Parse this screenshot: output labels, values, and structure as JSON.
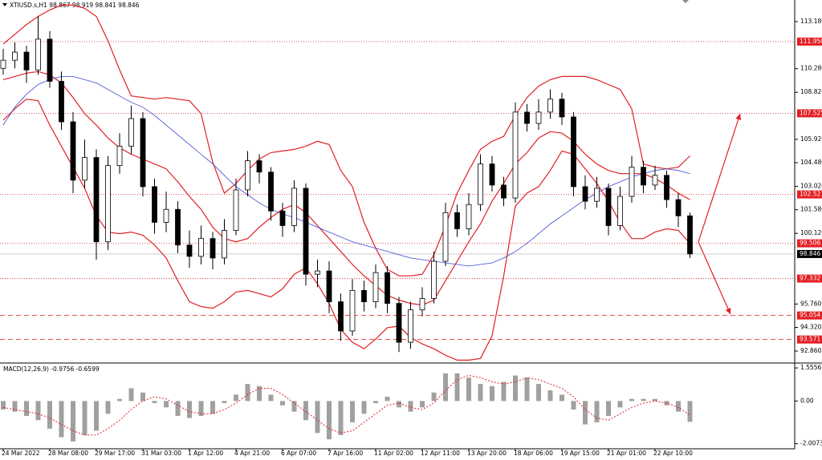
{
  "header": {
    "title": "XTIUSD.s,H1  98.867 98.919 98.841 98.846"
  },
  "chart_data": [
    {
      "type": "candlestick",
      "categories": [
        "24 Mar 2022",
        null,
        null,
        null,
        "28 Mar 08:00",
        null,
        null,
        null,
        "29 Mar 17:00",
        null,
        null,
        null,
        "31 Mar 03:00",
        null,
        null,
        null,
        "1 Apr 12:00",
        null,
        null,
        null,
        "4 Apr 21:00",
        null,
        null,
        null,
        "6 Apr 07:00",
        null,
        null,
        null,
        "7 Apr 16:00",
        null,
        null,
        null,
        "11 Apr 02:00",
        null,
        null,
        null,
        "12 Apr 11:00",
        null,
        null,
        null,
        "13 Apr 20:00",
        null,
        null,
        null,
        "18 Apr 06:00",
        null,
        null,
        null,
        "19 Apr 15:00",
        null,
        null,
        null,
        "21 Apr 01:00",
        null,
        null,
        null,
        "22 Apr 10:00",
        null,
        null,
        null
      ],
      "open": [
        110.3,
        110.8,
        111.3,
        110.2,
        112.1,
        109.5,
        107.0,
        103.4,
        104.8,
        99.6,
        104.3,
        105.5,
        107.2,
        103.0,
        100.8,
        101.6,
        99.4,
        98.7,
        99.8,
        98.6,
        100.3,
        102.8,
        104.6,
        103.9,
        101.5,
        100.6,
        102.9,
        97.6,
        97.8,
        95.9,
        94.1,
        96.6,
        95.9,
        97.7,
        95.8,
        93.4,
        95.4,
        96.1,
        98.4,
        101.4,
        100.4,
        101.9,
        104.4,
        103.1,
        102.3,
        107.6,
        106.9,
        107.6,
        108.4,
        107.3,
        103.0,
        102.1,
        102.9,
        100.6,
        102.4,
        104.2,
        103.1,
        103.7,
        102.2,
        101.2
      ],
      "high": [
        111.5,
        111.9,
        111.7,
        113.5,
        112.6,
        110.1,
        107.6,
        105.9,
        105.3,
        104.9,
        106.3,
        108.0,
        107.6,
        103.5,
        102.7,
        102.1,
        100.3,
        100.6,
        100.2,
        101.0,
        103.5,
        105.2,
        105.0,
        104.2,
        102.0,
        103.4,
        103.2,
        98.5,
        98.4,
        96.4,
        97.3,
        97.2,
        98.2,
        98.1,
        96.2,
        95.9,
        96.8,
        99.0,
        102.0,
        101.9,
        102.6,
        105.0,
        104.9,
        103.6,
        108.2,
        108.1,
        108.4,
        109.0,
        108.8,
        107.6,
        103.7,
        103.6,
        103.2,
        103.0,
        104.9,
        104.6,
        104.3,
        104.0,
        102.6,
        101.4
      ],
      "low": [
        109.9,
        110.3,
        109.4,
        109.9,
        109.1,
        106.5,
        102.6,
        102.9,
        98.5,
        99.1,
        103.8,
        105.0,
        102.4,
        100.1,
        100.2,
        98.9,
        98.0,
        98.2,
        97.9,
        98.2,
        100.0,
        102.4,
        103.2,
        100.9,
        99.9,
        100.2,
        96.9,
        96.8,
        95.2,
        93.5,
        93.8,
        95.3,
        95.5,
        95.2,
        92.8,
        93.0,
        95.0,
        95.8,
        98.1,
        99.9,
        100.0,
        101.5,
        102.7,
        101.8,
        102.0,
        106.4,
        106.5,
        107.2,
        106.8,
        102.4,
        101.6,
        101.7,
        100.0,
        100.3,
        102.0,
        102.6,
        102.8,
        101.7,
        100.5,
        98.6
      ],
      "close": [
        110.8,
        111.3,
        110.2,
        112.1,
        109.5,
        107.0,
        103.4,
        104.8,
        99.6,
        104.3,
        105.5,
        107.2,
        103.0,
        100.8,
        101.6,
        99.4,
        98.7,
        99.8,
        98.6,
        100.3,
        102.8,
        104.6,
        103.9,
        101.5,
        100.6,
        102.9,
        97.6,
        97.8,
        95.9,
        94.1,
        96.6,
        95.9,
        97.7,
        95.8,
        93.4,
        95.4,
        96.1,
        98.4,
        101.4,
        100.4,
        101.9,
        104.4,
        103.1,
        102.3,
        107.6,
        106.9,
        107.6,
        108.4,
        107.3,
        103.0,
        102.1,
        102.9,
        100.6,
        102.4,
        104.2,
        103.1,
        103.7,
        102.2,
        101.2,
        98.85
      ],
      "color": "#000000",
      "series": [
        {
          "color": "#e31e24",
          "values": [
            111.8,
            112.4,
            113.0,
            113.5,
            113.9,
            114.2,
            114.2,
            114.0,
            113.5,
            112.0,
            110.2,
            108.6,
            108.5,
            108.4,
            108.5,
            108.4,
            108.3,
            107.5,
            104.5,
            102.6,
            103.2,
            104.0,
            104.7,
            105.1,
            105.2,
            105.3,
            105.5,
            105.8,
            105.6,
            104.0,
            103.0,
            100.8,
            99.2,
            97.9,
            97.5,
            97.5,
            97.6,
            98.8,
            100.6,
            102.6,
            104.0,
            105.3,
            105.8,
            106.1,
            107.4,
            108.5,
            109.2,
            109.6,
            109.8,
            109.8,
            109.8,
            109.6,
            109.3,
            109.0,
            107.8,
            104.4,
            104.2,
            104.1,
            104.2,
            104.9
          ]
        },
        {
          "color": "#e31e24",
          "values": [
            109.6,
            109.8,
            110.0,
            110.1,
            109.9,
            109.4,
            108.5,
            107.5,
            106.8,
            106.0,
            105.4,
            105.0,
            104.7,
            104.4,
            104.1,
            103.3,
            102.4,
            101.6,
            100.5,
            99.8,
            99.6,
            99.8,
            100.5,
            101.1,
            101.6,
            101.9,
            101.4,
            100.6,
            99.8,
            99.0,
            98.2,
            97.5,
            96.9,
            96.3,
            96.0,
            95.8,
            95.7,
            96.0,
            97.2,
            98.4,
            99.6,
            100.7,
            102.1,
            103.2,
            104.4,
            105.1,
            106.0,
            106.4,
            106.3,
            105.8,
            105.0,
            104.4,
            104.0,
            103.8,
            103.8,
            103.8,
            103.5,
            103.1,
            102.6,
            102.2
          ]
        },
        {
          "color": "#e31e24",
          "values": [
            107.1,
            107.8,
            108.4,
            108.3,
            106.8,
            105.5,
            104.2,
            102.9,
            101.2,
            100.2,
            100.1,
            100.2,
            100.0,
            99.4,
            98.6,
            97.2,
            95.9,
            95.6,
            95.5,
            95.9,
            96.5,
            96.6,
            96.4,
            96.2,
            96.7,
            97.6,
            98.0,
            97.0,
            95.8,
            94.2,
            93.4,
            93.0,
            93.6,
            94.3,
            94.4,
            93.7,
            93.3,
            93.0,
            92.6,
            92.3,
            92.3,
            92.4,
            93.8,
            97.5,
            101.8,
            102.6,
            103.0,
            104.0,
            105.2,
            105.0,
            104.1,
            103.2,
            102.1,
            100.8,
            99.8,
            99.8,
            100.2,
            100.4,
            100.3,
            99.5
          ]
        },
        {
          "color": "#3b4bd8",
          "values": [
            106.8,
            107.9,
            108.7,
            109.3,
            109.6,
            109.8,
            109.8,
            109.6,
            109.4,
            109.0,
            108.6,
            108.2,
            107.9,
            107.4,
            106.8,
            106.2,
            105.6,
            105.0,
            104.4,
            103.7,
            103.0,
            102.5,
            102.0,
            101.6,
            101.3,
            101.1,
            100.8,
            100.5,
            100.2,
            99.9,
            99.6,
            99.4,
            99.2,
            99.0,
            98.8,
            98.6,
            98.5,
            98.4,
            98.3,
            98.2,
            98.1,
            98.2,
            98.3,
            98.6,
            99.0,
            99.5,
            100.1,
            100.7,
            101.2,
            101.7,
            102.2,
            102.6,
            103.0,
            103.3,
            103.6,
            103.8,
            104.0,
            104.1,
            104.0,
            103.8
          ]
        }
      ],
      "ylim": [
        92.17,
        114.515
      ],
      "yticks": [
        {
          "value": 113.18,
          "label": "113.180"
        },
        {
          "value": 110.28,
          "label": "110.280"
        },
        {
          "value": 108.82,
          "label": "108.820"
        },
        {
          "value": 105.92,
          "label": "105.920"
        },
        {
          "value": 104.48,
          "label": "104.480"
        },
        {
          "value": 103.02,
          "label": "103.020"
        },
        {
          "value": 101.58,
          "label": "101.580"
        },
        {
          "value": 100.12,
          "label": "100.120"
        },
        {
          "value": 95.76,
          "label": "95.760"
        },
        {
          "value": 94.32,
          "label": "94.320"
        },
        {
          "value": 92.86,
          "label": "92.860"
        }
      ],
      "levels": [
        {
          "value": 111.95,
          "label": "111.950",
          "style": "dotted"
        },
        {
          "value": 107.525,
          "label": "107.525",
          "style": "dotted"
        },
        {
          "value": 102.521,
          "label": "102.521",
          "style": "dotted"
        },
        {
          "value": 99.506,
          "label": "99.506",
          "style": "dotted"
        },
        {
          "value": 97.332,
          "label": "97.332",
          "style": "dotted"
        },
        {
          "value": 95.054,
          "label": "95.054",
          "style": "dashed"
        },
        {
          "value": 93.571,
          "label": "93.571",
          "style": "dashed"
        }
      ],
      "level_color": "#e31e24",
      "last_price": {
        "value": 98.846,
        "label": "98.846"
      }
    },
    {
      "type": "macd",
      "title": "MACD(12,26,9) -0.9756 -0.6599",
      "values": [
        -0.4,
        -0.5,
        -0.7,
        -0.9,
        -1.3,
        -1.7,
        -1.9,
        -1.6,
        -1.4,
        -0.6,
        0.1,
        0.6,
        0.4,
        -0.1,
        -0.3,
        -0.7,
        -0.8,
        -0.7,
        -0.6,
        -0.1,
        0.3,
        0.8,
        0.7,
        0.3,
        -0.2,
        -0.5,
        -0.9,
        -1.5,
        -1.8,
        -1.6,
        -1.0,
        -0.6,
        -0.1,
        0.2,
        -0.3,
        -0.5,
        -0.3,
        0.4,
        1.3,
        1.3,
        1.1,
        0.8,
        0.7,
        0.9,
        1.2,
        1.1,
        0.8,
        0.5,
        0.3,
        -0.4,
        -1.1,
        -1.0,
        -0.7,
        -0.3,
        0.1,
        0.1,
        0.1,
        -0.2,
        -0.5,
        -0.98
      ],
      "color": "#a0a0a0",
      "signal": {
        "color": "#e31e24",
        "values": [
          -0.3,
          -0.4,
          -0.5,
          -0.6,
          -0.8,
          -1.1,
          -1.4,
          -1.6,
          -1.6,
          -1.3,
          -0.9,
          -0.4,
          0.0,
          0.2,
          0.1,
          -0.2,
          -0.5,
          -0.6,
          -0.6,
          -0.4,
          -0.1,
          0.3,
          0.6,
          0.6,
          0.3,
          -0.1,
          -0.5,
          -0.9,
          -1.3,
          -1.5,
          -1.4,
          -1.0,
          -0.6,
          -0.2,
          -0.1,
          -0.3,
          -0.4,
          -0.1,
          0.5,
          1.0,
          1.2,
          1.1,
          0.9,
          0.8,
          0.9,
          1.1,
          1.0,
          0.8,
          0.6,
          0.2,
          -0.4,
          -0.8,
          -0.9,
          -0.6,
          -0.3,
          -0.1,
          0.0,
          -0.1,
          -0.3,
          -0.66
        ]
      },
      "ylim": [
        -2.17,
        1.71
      ],
      "yticks": [
        1.5556,
        {
          "value": 0,
          "label": "0.00"
        },
        -2.0073
      ]
    }
  ]
}
